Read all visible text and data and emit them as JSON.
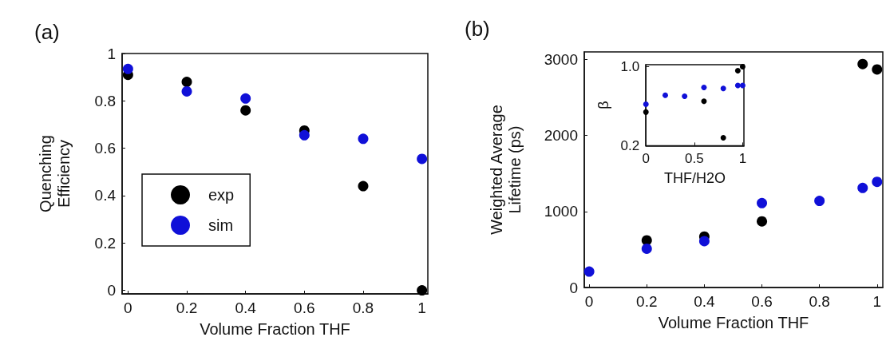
{
  "chart_data": [
    {
      "type": "scatter",
      "title": "(a)",
      "xlabel": "Volume Fraction THF",
      "ylabel": "Quenching\nEfficiency",
      "xlim": [
        -0.02,
        1.02
      ],
      "ylim": [
        -0.015,
        1
      ],
      "xticks": [
        0,
        0.2,
        0.4,
        0.6,
        0.8,
        1
      ],
      "yticks": [
        0,
        0.2,
        0.4,
        0.6,
        0.8,
        1
      ],
      "grid": false,
      "legend": "bottom left",
      "marker": "circle",
      "series": [
        {
          "name": "exp",
          "color": "#000000",
          "x": [
            0,
            0.2,
            0.4,
            0.6,
            0.8,
            1
          ],
          "values": [
            0.91,
            0.88,
            0.76,
            0.675,
            0.44,
            0.0
          ]
        },
        {
          "name": "sim",
          "color": "#1010d8",
          "x": [
            0,
            0.2,
            0.4,
            0.6,
            0.8,
            1
          ],
          "values": [
            0.935,
            0.84,
            0.81,
            0.655,
            0.64,
            0.555
          ]
        }
      ]
    },
    {
      "type": "scatter",
      "title": "(b)",
      "xlabel": "Volume Fraction THF",
      "ylabel": "Weighted Average\nLifetime (ps)",
      "xlim": [
        -0.017,
        1.02
      ],
      "ylim": [
        0,
        3100
      ],
      "xticks": [
        0,
        0.2,
        0.4,
        0.6,
        0.8,
        1
      ],
      "yticks": [
        0,
        1000,
        2000,
        3000
      ],
      "grid": false,
      "marker": "circle",
      "series": [
        {
          "color": "#000000",
          "x": [
            0.2,
            0.4,
            0.6,
            0.95,
            1
          ],
          "values": [
            620,
            670,
            870,
            2940,
            2870
          ]
        },
        {
          "color": "#1010d8",
          "x": [
            0,
            0.2,
            0.4,
            0.6,
            0.8,
            0.95,
            1
          ],
          "values": [
            210,
            510,
            610,
            1110,
            1140,
            1310,
            1390
          ]
        }
      ]
    },
    {
      "type": "scatter",
      "xlabel": "THF/H2O",
      "ylabel": "β",
      "xlim": [
        0,
        1.013
      ],
      "ylim": [
        0.2,
        1.02
      ],
      "xticks": [
        0,
        0.5,
        1
      ],
      "yticks": [
        {
          "value": 1,
          "label": "1.0"
        },
        0.2
      ],
      "grid": false,
      "marker": "circle",
      "series": [
        {
          "color": "#000000",
          "x": [
            0,
            0.6,
            0.8,
            0.95,
            1
          ],
          "values": [
            0.54,
            0.65,
            0.28,
            0.96,
            1.0
          ]
        },
        {
          "color": "#1010d8",
          "x": [
            0,
            0.2,
            0.4,
            0.6,
            0.8,
            0.95,
            1
          ],
          "values": [
            0.62,
            0.71,
            0.7,
            0.79,
            0.78,
            0.81,
            0.81
          ]
        }
      ]
    }
  ]
}
